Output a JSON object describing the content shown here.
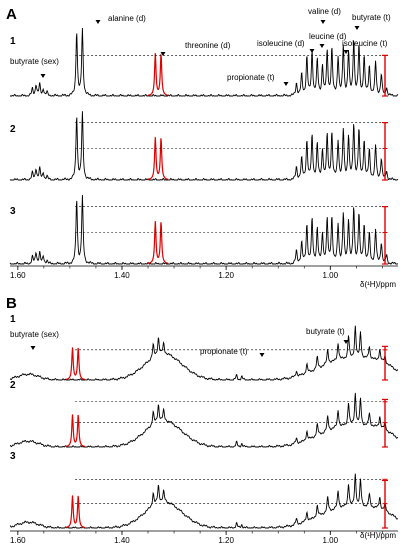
{
  "chart_data": [
    {
      "type": "line",
      "panel_label": "A",
      "xlabel": "δ(¹H)/ppm",
      "x_reversed": true,
      "xlim": [
        1.615,
        0.87
      ],
      "x_ticks": [
        "1.60",
        "1.40",
        "1.20",
        "1.00"
      ],
      "x_tick_values": [
        1.6,
        1.4,
        1.2,
        1.0
      ],
      "highlight_color": "#e00000",
      "trace_color": "#000000",
      "series": [
        {
          "label": "1",
          "baseline_relative": 0.0,
          "dashed_levels": [
            0.58
          ]
        },
        {
          "label": "2",
          "baseline_relative": 0.0,
          "dashed_levels": [
            0.45,
            0.82
          ]
        },
        {
          "label": "3",
          "baseline_relative": 0.0,
          "dashed_levels": [
            0.45,
            0.82
          ]
        }
      ],
      "peaks": [
        {
          "ppm": 1.572,
          "h": 0.1
        },
        {
          "ppm": 1.565,
          "h": 0.16
        },
        {
          "ppm": 1.558,
          "h": 0.16
        },
        {
          "ppm": 1.551,
          "h": 0.1
        },
        {
          "ppm": 1.544,
          "h": 0.05
        },
        {
          "ppm": 1.487,
          "h": 0.92
        },
        {
          "ppm": 1.476,
          "h": 0.95
        },
        {
          "ppm": 1.336,
          "h": 0.6,
          "highlight": true
        },
        {
          "ppm": 1.325,
          "h": 0.6,
          "highlight": true
        },
        {
          "ppm": 1.065,
          "h": 0.18
        },
        {
          "ppm": 1.055,
          "h": 0.3
        },
        {
          "ppm": 1.045,
          "h": 0.55
        },
        {
          "ppm": 1.035,
          "h": 0.62
        },
        {
          "ppm": 1.025,
          "h": 0.5
        },
        {
          "ppm": 1.015,
          "h": 0.42
        },
        {
          "ppm": 1.006,
          "h": 0.62
        },
        {
          "ppm": 0.997,
          "h": 0.66
        },
        {
          "ppm": 0.985,
          "h": 0.55
        },
        {
          "ppm": 0.975,
          "h": 0.7
        },
        {
          "ppm": 0.965,
          "h": 0.62
        },
        {
          "ppm": 0.955,
          "h": 0.78
        },
        {
          "ppm": 0.945,
          "h": 0.7
        },
        {
          "ppm": 0.935,
          "h": 0.55
        },
        {
          "ppm": 0.925,
          "h": 0.42
        },
        {
          "ppm": 0.913,
          "h": 0.48
        },
        {
          "ppm": 0.902,
          "h": 0.3
        },
        {
          "ppm": 0.892,
          "h": 0.12
        }
      ],
      "annotations": [
        {
          "text": "alanine (d)",
          "ppm": 1.482
        },
        {
          "text": "threonine (d)",
          "ppm": 1.33
        },
        {
          "text": "butyrate (sex)",
          "ppm": 1.558
        },
        {
          "text": "propionate (t)",
          "ppm": 1.055
        },
        {
          "text": "isoleucine (d)",
          "ppm": 1.02
        },
        {
          "text": "leucine (d)",
          "ppm": 0.97
        },
        {
          "text": "valine (d)",
          "ppm": 0.99
        },
        {
          "text": "butyrate (t)",
          "ppm": 0.9
        },
        {
          "text": "isoleucine (t)",
          "ppm": 0.935
        }
      ]
    },
    {
      "type": "line",
      "panel_label": "B",
      "xlabel": "δ(¹H)/ppm",
      "x_reversed": true,
      "xlim": [
        1.615,
        0.87
      ],
      "x_ticks": [
        "1.60",
        "1.40",
        "1.20",
        "1.00"
      ],
      "x_tick_values": [
        1.6,
        1.4,
        1.2,
        1.0
      ],
      "highlight_color": "#e00000",
      "trace_color": "#000000",
      "series": [
        {
          "label": "1",
          "baseline_relative": 0.0,
          "dashed_levels": [
            0.52
          ]
        },
        {
          "label": "2",
          "baseline_relative": 0.0,
          "dashed_levels": [
            0.42,
            0.78
          ]
        },
        {
          "label": "3",
          "baseline_relative": 0.0,
          "dashed_levels": [
            0.42,
            0.84
          ]
        }
      ],
      "broad": [
        {
          "ppm": 1.32,
          "h": 0.45,
          "w": 0.035
        },
        {
          "ppm": 1.58,
          "h": 0.1,
          "w": 0.02
        },
        {
          "ppm": 0.97,
          "h": 0.35,
          "w": 0.05
        },
        {
          "ppm": 0.9,
          "h": 0.18,
          "w": 0.03
        }
      ],
      "peaks": [
        {
          "ppm": 1.495,
          "h": 0.55,
          "highlight": true
        },
        {
          "ppm": 1.484,
          "h": 0.55,
          "highlight": true
        },
        {
          "ppm": 1.34,
          "h": 0.22
        },
        {
          "ppm": 1.33,
          "h": 0.3
        },
        {
          "ppm": 1.32,
          "h": 0.18
        },
        {
          "ppm": 1.18,
          "h": 0.08
        },
        {
          "ppm": 1.17,
          "h": 0.06
        },
        {
          "ppm": 1.065,
          "h": 0.1
        },
        {
          "ppm": 1.045,
          "h": 0.16
        },
        {
          "ppm": 1.025,
          "h": 0.2
        },
        {
          "ppm": 1.005,
          "h": 0.25
        },
        {
          "ppm": 0.985,
          "h": 0.3
        },
        {
          "ppm": 0.965,
          "h": 0.4
        },
        {
          "ppm": 0.952,
          "h": 0.55
        },
        {
          "ppm": 0.942,
          "h": 0.45
        },
        {
          "ppm": 0.925,
          "h": 0.22
        },
        {
          "ppm": 0.905,
          "h": 0.2
        },
        {
          "ppm": 0.895,
          "h": 0.12
        }
      ],
      "annotations": [
        {
          "text": "butyrate (sex)",
          "ppm": 1.575
        },
        {
          "text": "propionate (t)",
          "ppm": 1.065
        },
        {
          "text": "butyrate (t)",
          "ppm": 0.92
        }
      ]
    }
  ]
}
